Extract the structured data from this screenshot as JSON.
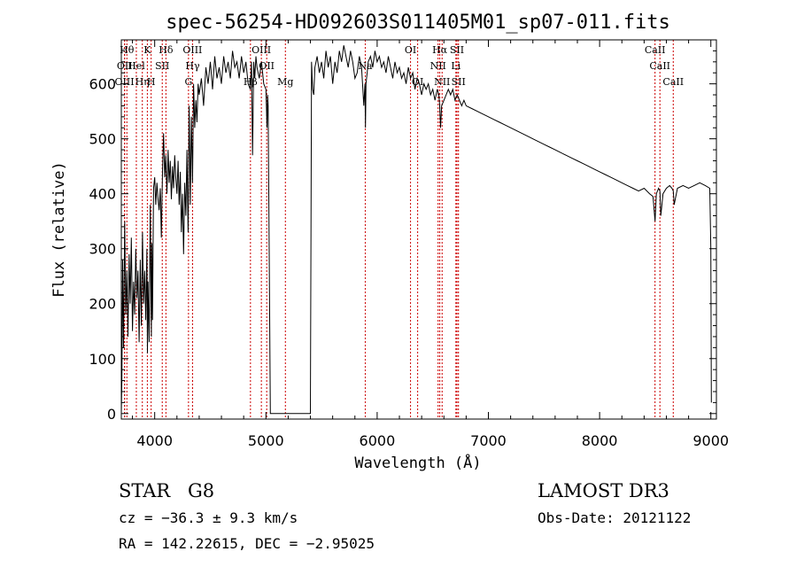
{
  "chart_data": {
    "type": "line",
    "title": "spec-56254-HD092603S011405M01_sp07-011.fits",
    "xlabel": "Wavelength (Å)",
    "ylabel": "Flux (relative)",
    "xlim": [
      3700,
      9050
    ],
    "ylim": [
      -10,
      680
    ],
    "xticks": [
      4000,
      5000,
      6000,
      7000,
      8000,
      9000
    ],
    "yticks": [
      0,
      100,
      200,
      300,
      400,
      500,
      600
    ],
    "xtick_labels": [
      "4000",
      "5000",
      "6000",
      "7000",
      "8000",
      "9000"
    ],
    "ytick_labels": [
      "0",
      "100",
      "200",
      "300",
      "400",
      "500",
      "600"
    ],
    "grid": false,
    "line_color": "#000000",
    "marker_color": "#cc0000",
    "series": [
      {
        "x": [
          3700,
          3705,
          3712,
          3720,
          3730,
          3740,
          3750,
          3760,
          3770,
          3780,
          3790,
          3800,
          3810,
          3820,
          3830,
          3840,
          3850,
          3860,
          3870,
          3880,
          3890,
          3900,
          3910,
          3920,
          3930,
          3935,
          3940,
          3950,
          3960,
          3970,
          3975,
          3980,
          3990,
          4000,
          4010,
          4020,
          4030,
          4040,
          4050,
          4060,
          4070,
          4080,
          4090,
          4100,
          4110,
          4120,
          4130,
          4140,
          4150,
          4160,
          4170,
          4180,
          4190,
          4200,
          4210,
          4220,
          4230,
          4240,
          4250,
          4260,
          4270,
          4280,
          4290,
          4300,
          4310,
          4320,
          4330,
          4340,
          4350,
          4360,
          4370,
          4380,
          4390,
          4400,
          4420,
          4440,
          4460,
          4480,
          4500,
          4520,
          4540,
          4560,
          4580,
          4600,
          4620,
          4640,
          4660,
          4680,
          4700,
          4720,
          4740,
          4760,
          4780,
          4800,
          4820,
          4840,
          4860,
          4870,
          4880,
          4890,
          4900,
          4910,
          4920,
          4940,
          4960,
          4980,
          5000,
          5010,
          5015,
          5020,
          5040,
          5060,
          5080,
          5100,
          5120,
          5140,
          5160,
          5180,
          5200,
          5220,
          5240,
          5260,
          5280,
          5300,
          5320,
          5340,
          5360,
          5380,
          5400,
          5410,
          5420,
          5430,
          5440,
          5460,
          5480,
          5500,
          5520,
          5540,
          5560,
          5580,
          5600,
          5620,
          5640,
          5660,
          5680,
          5700,
          5720,
          5740,
          5760,
          5780,
          5800,
          5820,
          5840,
          5860,
          5880,
          5890,
          5895,
          5900,
          5910,
          5920,
          5940,
          5960,
          5980,
          6000,
          6020,
          6040,
          6060,
          6080,
          6100,
          6120,
          6140,
          6160,
          6180,
          6200,
          6220,
          6240,
          6260,
          6280,
          6300,
          6320,
          6340,
          6360,
          6380,
          6400,
          6420,
          6440,
          6460,
          6480,
          6500,
          6520,
          6540,
          6555,
          6562,
          6570,
          6580,
          6600,
          6620,
          6640,
          6660,
          6680,
          6700,
          6720,
          6740,
          6760,
          6780,
          6800,
          6850,
          6900,
          6950,
          7000,
          7050,
          7100,
          7150,
          7200,
          7250,
          7300,
          7350,
          7400,
          7450,
          7500,
          7550,
          7600,
          7650,
          7700,
          7750,
          7800,
          7850,
          7900,
          7950,
          8000,
          8050,
          8100,
          8150,
          8200,
          8250,
          8300,
          8350,
          8400,
          8450,
          8480,
          8498,
          8510,
          8530,
          8542,
          8550,
          8570,
          8600,
          8630,
          8650,
          8662,
          8670,
          8700,
          8750,
          8800,
          8850,
          8900,
          8950,
          8990,
          9000,
          9005
        ],
        "y": [
          0,
          60,
          280,
          120,
          350,
          180,
          260,
          140,
          290,
          200,
          320,
          150,
          240,
          180,
          300,
          210,
          260,
          130,
          280,
          160,
          330,
          200,
          260,
          170,
          300,
          110,
          240,
          130,
          380,
          140,
          310,
          170,
          410,
          430,
          380,
          420,
          390,
          370,
          410,
          320,
          440,
          510,
          430,
          470,
          400,
          480,
          420,
          460,
          390,
          450,
          410,
          470,
          430,
          400,
          460,
          380,
          440,
          330,
          400,
          290,
          420,
          360,
          480,
          330,
          560,
          380,
          540,
          420,
          600,
          520,
          570,
          530,
          600,
          580,
          610,
          560,
          630,
          600,
          640,
          590,
          650,
          610,
          630,
          600,
          650,
          620,
          640,
          610,
          660,
          630,
          640,
          610,
          650,
          620,
          640,
          600,
          590,
          640,
          470,
          640,
          610,
          650,
          630,
          610,
          640,
          600,
          590,
          520,
          580,
          560,
          0,
          0,
          0,
          0,
          0,
          0,
          0,
          0,
          0,
          0,
          0,
          0,
          0,
          0,
          0,
          0,
          0,
          0,
          0,
          640,
          590,
          580,
          630,
          650,
          620,
          640,
          610,
          660,
          630,
          650,
          600,
          640,
          620,
          660,
          640,
          670,
          650,
          630,
          660,
          640,
          610,
          620,
          650,
          630,
          560,
          600,
          520,
          600,
          620,
          640,
          650,
          630,
          660,
          640,
          650,
          630,
          640,
          620,
          650,
          630,
          610,
          640,
          620,
          630,
          610,
          620,
          600,
          630,
          610,
          620,
          590,
          610,
          600,
          580,
          600,
          590,
          600,
          580,
          590,
          570,
          590,
          580,
          560,
          520,
          560,
          570,
          580,
          590,
          580,
          590,
          570,
          580,
          570,
          560,
          570,
          560,
          555,
          550,
          545,
          540,
          535,
          530,
          525,
          520,
          515,
          510,
          505,
          500,
          495,
          490,
          485,
          480,
          475,
          470,
          465,
          460,
          455,
          450,
          445,
          440,
          435,
          430,
          425,
          420,
          415,
          410,
          405,
          410,
          400,
          395,
          350,
          400,
          410,
          405,
          360,
          400,
          410,
          415,
          410,
          405,
          380,
          410,
          415,
          410,
          415,
          420,
          415,
          410,
          300,
          20
        ]
      }
    ],
    "line_markers": [
      {
        "x": 3750,
        "label": "Hθ",
        "row": 1
      },
      {
        "x": 3730,
        "label": "OII",
        "row": 2
      },
      {
        "x": 3728,
        "label": "OIII",
        "row": 3
      },
      {
        "x": 3835,
        "label": "Hel",
        "row": 2
      },
      {
        "x": 3889,
        "label": "Hη",
        "row": 3
      },
      {
        "x": 3934,
        "label": "K",
        "row": 1
      },
      {
        "x": 3968,
        "label": "H",
        "row": 3
      },
      {
        "x": 4068,
        "label": "SII",
        "row": 2
      },
      {
        "x": 4101,
        "label": "Hδ",
        "row": 1
      },
      {
        "x": 4340,
        "label": "OIII",
        "row": 1
      },
      {
        "x": 4341,
        "label": "Hγ",
        "row": 2
      },
      {
        "x": 4304,
        "label": "G",
        "row": 3
      },
      {
        "x": 4861,
        "label": "Hβ",
        "row": 3
      },
      {
        "x": 4959,
        "label": "OIII",
        "row": 1
      },
      {
        "x": 5007,
        "label": "OII",
        "row": 2
      },
      {
        "x": 5175,
        "label": "Mg",
        "row": 3
      },
      {
        "x": 5893,
        "label": "Na",
        "row": 2
      },
      {
        "x": 6300,
        "label": "OI",
        "row": 1
      },
      {
        "x": 6364,
        "label": "OI",
        "row": 3
      },
      {
        "x": 6563,
        "label": "Hα",
        "row": 1
      },
      {
        "x": 6548,
        "label": "NII",
        "row": 2
      },
      {
        "x": 6584,
        "label": "NII",
        "row": 3
      },
      {
        "x": 6717,
        "label": "SII",
        "row": 1
      },
      {
        "x": 6708,
        "label": "Li",
        "row": 2
      },
      {
        "x": 6731,
        "label": "SII",
        "row": 3
      },
      {
        "x": 8498,
        "label": "CaII",
        "row": 1
      },
      {
        "x": 8542,
        "label": "CaII",
        "row": 2
      },
      {
        "x": 8662,
        "label": "CaII",
        "row": 3
      }
    ]
  },
  "info": {
    "object_class": "STAR",
    "subclass": "G8",
    "survey": "LAMOST DR3",
    "cz_line": "cz = −36.3 ± 9.3 km/s",
    "obs_date": "Obs-Date: 20121122",
    "radec_line": "RA = 142.22615, DEC =  −2.95025"
  }
}
